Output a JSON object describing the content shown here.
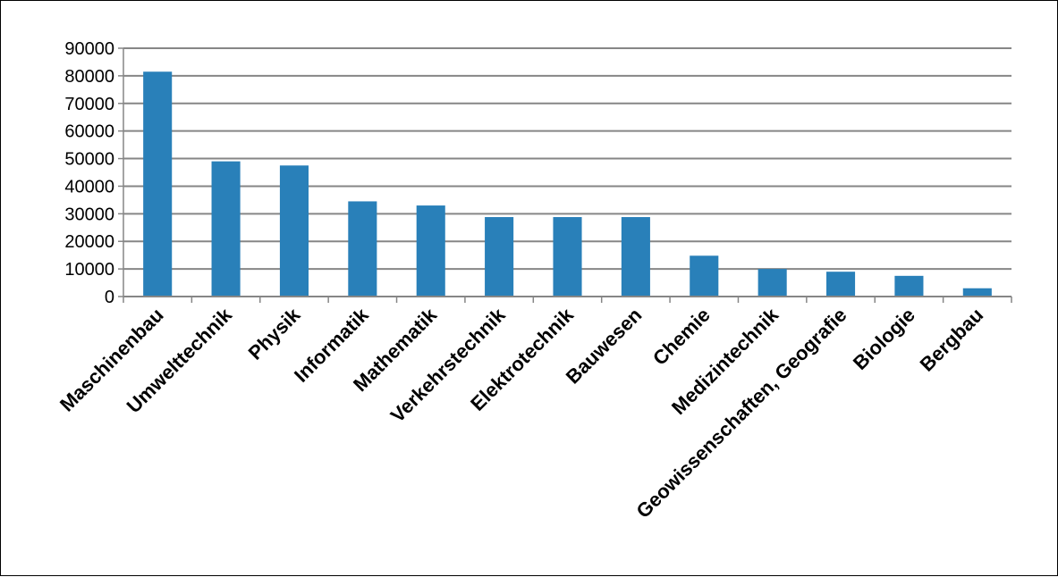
{
  "chart_data": {
    "type": "bar",
    "title": "",
    "xlabel": "",
    "ylabel": "",
    "categories": [
      "Maschinenbau",
      "Umwelttechnik",
      "Physik",
      "Informatik",
      "Mathematik",
      "Verkehrstechnik",
      "Elektrotechnik",
      "Bauwesen",
      "Chemie",
      "Medizintechnik",
      "Geowissenschaften, Geografie",
      "Biologie",
      "Bergbau"
    ],
    "values": [
      81500,
      49000,
      47500,
      34500,
      33000,
      28800,
      28800,
      28800,
      14800,
      10000,
      9000,
      7500,
      3000
    ],
    "ylim": [
      0,
      90000
    ],
    "yticks": [
      "0",
      "10000",
      "20000",
      "30000",
      "40000",
      "50000",
      "60000",
      "70000",
      "80000",
      "90000"
    ],
    "grid": true,
    "legend": "none",
    "colors": {
      "bar": "#2980b9",
      "grid": "#868686",
      "axis": "#868686"
    }
  }
}
